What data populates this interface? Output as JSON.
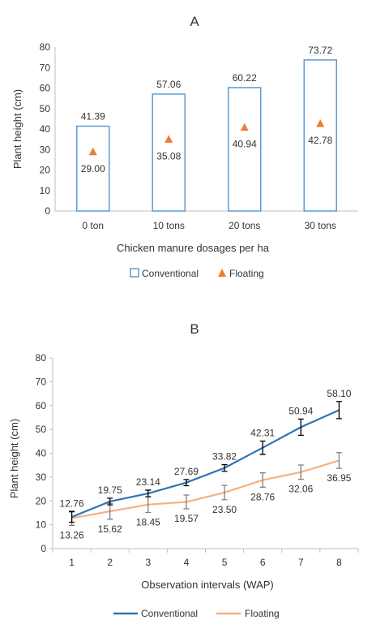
{
  "chart_data": [
    {
      "panel": "A",
      "type": "bar",
      "xlabel": "Chicken manure dosages per ha",
      "ylabel": "Plant height (cm)",
      "categories": [
        "0  ton",
        "10 tons",
        "20 tons",
        "30 tons"
      ],
      "ylim": [
        0,
        80
      ],
      "yticks": [
        0,
        10,
        20,
        30,
        40,
        50,
        60,
        70,
        80
      ],
      "grid": false,
      "legend": "bottom",
      "series": [
        {
          "name": "Conventional",
          "kind": "bar",
          "marker": "hollow-square",
          "color": "#5B9BD5",
          "values": [
            41.39,
            57.06,
            60.22,
            73.72
          ],
          "labels": [
            "41.39",
            "57.06",
            "60.22",
            "73.72"
          ]
        },
        {
          "name": "Floating",
          "kind": "marker",
          "marker": "triangle",
          "color": "#ED7D31",
          "values": [
            29.0,
            35.08,
            40.94,
            42.78
          ],
          "labels": [
            "29.00",
            "35.08",
            "40.94",
            "42.78"
          ]
        }
      ]
    },
    {
      "panel": "B",
      "type": "line",
      "xlabel": "Observation intervals (WAP)",
      "ylabel": "Plant height (cm)",
      "x": [
        1,
        2,
        3,
        4,
        5,
        6,
        7,
        8
      ],
      "ylim": [
        0,
        80
      ],
      "yticks": [
        0,
        10,
        20,
        30,
        40,
        50,
        60,
        70,
        80
      ],
      "grid": false,
      "legend": "bottom",
      "series": [
        {
          "name": "Conventional",
          "color": "#2E75B6",
          "errcolor": "#000000",
          "values": [
            13.26,
            19.75,
            23.14,
            27.69,
            33.82,
            42.31,
            50.94,
            58.1
          ],
          "errors": [
            2.2,
            1.4,
            1.4,
            1.3,
            1.4,
            2.8,
            3.4,
            3.6
          ],
          "labels": [
            "13.26",
            "19.75",
            "23.14",
            "27.69",
            "33.82",
            "42.31",
            "50.94",
            "58.10"
          ]
        },
        {
          "name": "Floating",
          "color": "#F4B183",
          "errcolor": "#7F7F7F",
          "values": [
            12.76,
            15.62,
            18.45,
            19.57,
            23.5,
            28.76,
            32.06,
            36.95
          ],
          "errors": [
            3.0,
            3.3,
            3.3,
            2.9,
            3.0,
            3.0,
            3.0,
            3.3
          ],
          "labels": [
            "12.76",
            "15.62",
            "18.45",
            "19.57",
            "23.50",
            "28.76",
            "32.06",
            "36.95"
          ]
        }
      ]
    }
  ]
}
